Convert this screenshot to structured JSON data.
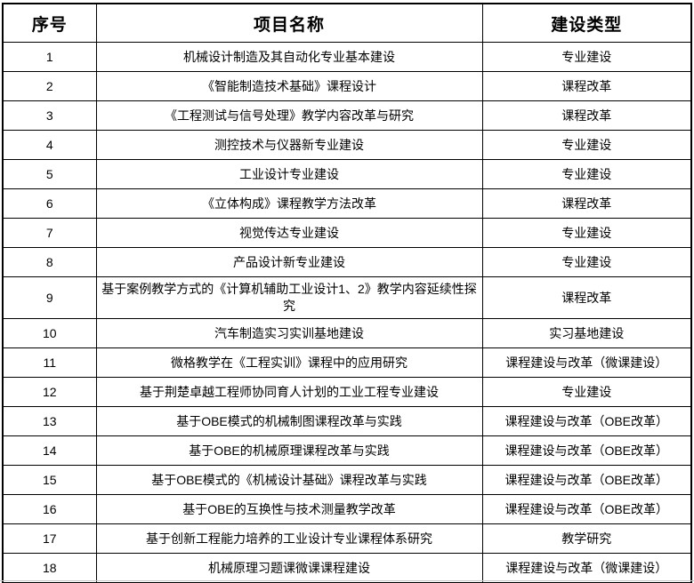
{
  "table": {
    "columns": {
      "no": "序号",
      "name": "项目名称",
      "type": "建设类型"
    },
    "rows": [
      {
        "no": "1",
        "name": "机械设计制造及其自动化专业基本建设",
        "type": "专业建设"
      },
      {
        "no": "2",
        "name": "《智能制造技术基础》课程设计",
        "type": "课程改革"
      },
      {
        "no": "3",
        "name": "《工程测试与信号处理》教学内容改革与研究",
        "type": "课程改革"
      },
      {
        "no": "4",
        "name": "测控技术与仪器新专业建设",
        "type": "专业建设"
      },
      {
        "no": "5",
        "name": "工业设计专业建设",
        "type": "专业建设"
      },
      {
        "no": "6",
        "name": "《立体构成》课程教学方法改革",
        "type": "课程改革"
      },
      {
        "no": "7",
        "name": "视觉传达专业建设",
        "type": "专业建设"
      },
      {
        "no": "8",
        "name": "产品设计新专业建设",
        "type": "专业建设"
      },
      {
        "no": "9",
        "name": "基于案例教学方式的《计算机辅助工业设计1、2》教学内容延续性探究",
        "type": "课程改革"
      },
      {
        "no": "10",
        "name": "汽车制造实习实训基地建设",
        "type": "实习基地建设"
      },
      {
        "no": "11",
        "name": "微格教学在《工程实训》课程中的应用研究",
        "type": "课程建设与改革（微课建设）"
      },
      {
        "no": "12",
        "name": "基于荆楚卓越工程师协同育人计划的工业工程专业建设",
        "type": "专业建设"
      },
      {
        "no": "13",
        "name": "基于OBE模式的机械制图课程改革与实践",
        "type": "课程建设与改革（OBE改革）"
      },
      {
        "no": "14",
        "name": "基于OBE的机械原理课程改革与实践",
        "type": "课程建设与改革（OBE改革）"
      },
      {
        "no": "15",
        "name": "基于OBE模式的《机械设计基础》课程改革与实践",
        "type": "课程建设与改革（OBE改革）"
      },
      {
        "no": "16",
        "name": "基于OBE的互换性与技术测量教学改革",
        "type": "课程建设与改革（OBE改革）"
      },
      {
        "no": "17",
        "name": "基于创新工程能力培养的工业设计专业课程体系研究",
        "type": "教学研究"
      },
      {
        "no": "18",
        "name": "机械原理习题课微课课程建设",
        "type": "课程建设与改革（微课建设）"
      }
    ],
    "border_color": "#000000",
    "text_color": "#000000"
  }
}
